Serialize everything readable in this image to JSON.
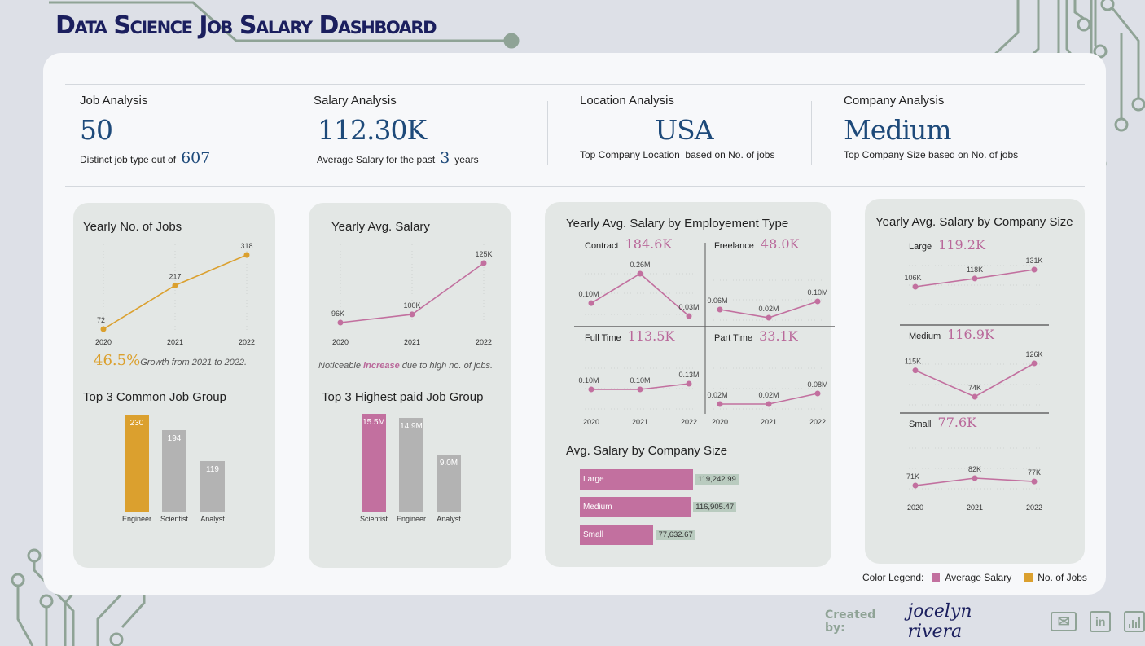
{
  "title": "Data Science Job Salary Dashboard",
  "kpis": [
    {
      "label": "Job Analysis",
      "value": "50",
      "caption": "Distinct job type out of",
      "caption_value": "607",
      "caption_post": ""
    },
    {
      "label": "Salary Analysis",
      "value": "112.30K",
      "caption": "Average Salary for the past",
      "caption_value": "3",
      "caption_post": "years"
    },
    {
      "label": "Location Analysis",
      "value": "USA",
      "caption": "Top Company Location  based on No. of jobs"
    },
    {
      "label": "Company Analysis",
      "value": "Medium",
      "caption": "Top Company Size based on No. of jobs"
    }
  ],
  "notes": {
    "growth_value": "46.5%",
    "growth_text": "Growth from 2021  to 2022.",
    "salary_pre": "Noticeable",
    "salary_em": "increase",
    "salary_post": " due to high no. of jobs."
  },
  "legend": {
    "title": "Color Legend:",
    "items": [
      "Average Salary",
      "No. of Jobs"
    ]
  },
  "footer": {
    "created_by": "Created by:",
    "author": "jocelyn rivera"
  },
  "colors": {
    "salary": "#c2709f",
    "jobs": "#dba02e",
    "neutral": "#b3b3b3",
    "brand": "#1b1f5e",
    "accent_green": "#8fa396"
  },
  "icons": [
    "mail-icon",
    "linkedin-icon",
    "bar-chart-icon"
  ],
  "chart_data": [
    {
      "type": "line",
      "title": "Yearly No. of Jobs",
      "x": [
        "2020",
        "2021",
        "2022"
      ],
      "values": [
        72,
        217,
        318
      ],
      "labels": [
        "72",
        "217",
        "318"
      ]
    },
    {
      "type": "line",
      "title": "Yearly Avg. Salary",
      "x": [
        "2020",
        "2021",
        "2022"
      ],
      "values": [
        96,
        100,
        125
      ],
      "labels": [
        "96K",
        "100K",
        "125K"
      ]
    },
    {
      "type": "line",
      "title": "Yearly Avg. Salary by Employement Type",
      "x": [
        "2020",
        "2021",
        "2022"
      ],
      "panels": [
        {
          "name": "Contract",
          "summary": "184.6K",
          "values": [
            0.1,
            0.26,
            0.03
          ],
          "labels": [
            "0.10M",
            "0.26M",
            "0.03M"
          ]
        },
        {
          "name": "Freelance",
          "summary": "48.0K",
          "values": [
            0.06,
            0.02,
            0.1
          ],
          "labels": [
            "0.06M",
            "0.02M",
            "0.10M"
          ]
        },
        {
          "name": "Full Time",
          "summary": "113.5K",
          "values": [
            0.1,
            0.1,
            0.13
          ],
          "labels": [
            "0.10M",
            "0.10M",
            "0.13M"
          ]
        },
        {
          "name": "Part Time",
          "summary": "33.1K",
          "values": [
            0.02,
            0.02,
            0.08
          ],
          "labels": [
            "0.02M",
            "0.02M",
            "0.08M"
          ]
        }
      ]
    },
    {
      "type": "line",
      "title": "Yearly Avg. Salary by Company Size",
      "x": [
        "2020",
        "2021",
        "2022"
      ],
      "panels": [
        {
          "name": "Large",
          "summary": "119.2K",
          "values": [
            106,
            118,
            131
          ],
          "labels": [
            "106K",
            "118K",
            "131K"
          ]
        },
        {
          "name": "Medium",
          "summary": "116.9K",
          "values": [
            115,
            74,
            126
          ],
          "labels": [
            "115K",
            "74K",
            "126K"
          ]
        },
        {
          "name": "Small",
          "summary": "77.6K",
          "values": [
            71,
            82,
            77
          ],
          "labels": [
            "71K",
            "82K",
            "77K"
          ]
        }
      ]
    },
    {
      "type": "bar",
      "title": "Top 3 Common Job Group",
      "categories": [
        "Engineer",
        "Scientist",
        "Analyst"
      ],
      "values": [
        230,
        194,
        119
      ],
      "labels": [
        "230",
        "194",
        "119"
      ],
      "highlight": 0
    },
    {
      "type": "bar",
      "title": "Top 3 Highest paid Job Group",
      "categories": [
        "Scientist",
        "Engineer",
        "Analyst"
      ],
      "values": [
        15.5,
        14.9,
        9.0
      ],
      "labels": [
        "15.5M",
        "14.9M",
        "9.0M"
      ],
      "highlight": 0
    },
    {
      "type": "bar",
      "orientation": "horizontal",
      "title": "Avg. Salary by Company Size",
      "categories": [
        "Large",
        "Medium",
        "Small"
      ],
      "values": [
        119242.99,
        116905.47,
        77632.67
      ],
      "labels": [
        "119,242.99",
        "116,905.47",
        "77,632.67"
      ]
    }
  ]
}
